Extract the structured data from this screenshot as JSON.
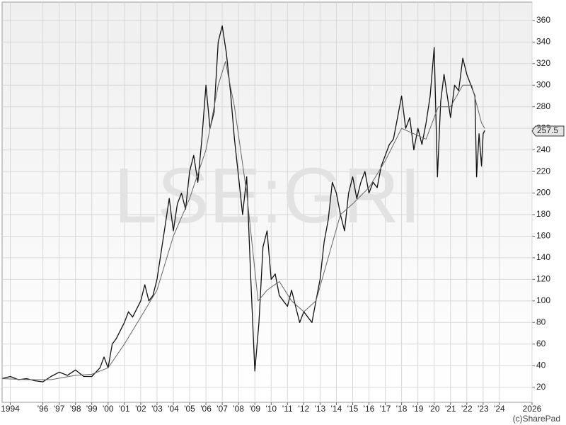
{
  "chart_data": {
    "type": "line",
    "watermark": "LSE:GRI",
    "credit": "(c)SharePad",
    "xlim": [
      1993.5,
      2026
    ],
    "ylim": [
      6,
      377
    ],
    "xticks": [
      1994,
      {
        "value": 1996,
        "label": "'96"
      },
      {
        "value": 1997,
        "label": "'97"
      },
      {
        "value": 1998,
        "label": "'98"
      },
      {
        "value": 1999,
        "label": "'99"
      },
      {
        "value": 2000,
        "label": "'00"
      },
      {
        "value": 2001,
        "label": "'01"
      },
      {
        "value": 2002,
        "label": "'02"
      },
      {
        "value": 2003,
        "label": "'03"
      },
      {
        "value": 2004,
        "label": "'04"
      },
      {
        "value": 2005,
        "label": "'05"
      },
      {
        "value": 2006,
        "label": "'06"
      },
      {
        "value": 2007,
        "label": "'07"
      },
      {
        "value": 2008,
        "label": "'08"
      },
      {
        "value": 2009,
        "label": "'09"
      },
      {
        "value": 2010,
        "label": "'10"
      },
      {
        "value": 2011,
        "label": "'11"
      },
      {
        "value": 2012,
        "label": "'12"
      },
      {
        "value": 2013,
        "label": "'13"
      },
      {
        "value": 2014,
        "label": "'14"
      },
      {
        "value": 2015,
        "label": "'15"
      },
      {
        "value": 2016,
        "label": "'16"
      },
      {
        "value": 2017,
        "label": "'17"
      },
      {
        "value": 2018,
        "label": "'18"
      },
      {
        "value": 2019,
        "label": "'19"
      },
      {
        "value": 2020,
        "label": "'20"
      },
      {
        "value": 2021,
        "label": "'21"
      },
      {
        "value": 2022,
        "label": "'22"
      },
      {
        "value": 2023,
        "label": "'23"
      },
      {
        "value": 2024,
        "label": "'24"
      },
      2026
    ],
    "yticks": [
      20,
      40,
      60,
      80,
      100,
      120,
      140,
      160,
      180,
      200,
      220,
      240,
      260,
      280,
      300,
      320,
      340,
      360
    ],
    "grid": true,
    "current_price": {
      "value": 257.5,
      "label": "257.5"
    },
    "series": [
      {
        "color": "#111111",
        "width": 1.3,
        "x": [
          1993.5,
          1994,
          1994.5,
          1995,
          1995.5,
          1996,
          1996.5,
          1997,
          1997.5,
          1998,
          1998.5,
          1999,
          1999.5,
          1999.75,
          2000,
          2000.25,
          2000.5,
          2001,
          2001.25,
          2001.5,
          2002,
          2002.25,
          2002.5,
          2002.75,
          2003,
          2003.25,
          2003.5,
          2003.75,
          2004,
          2004.25,
          2004.5,
          2004.75,
          2005,
          2005.25,
          2005.5,
          2005.75,
          2006,
          2006.25,
          2006.5,
          2006.75,
          2007,
          2007.25,
          2007.5,
          2007.75,
          2008,
          2008.25,
          2008.5,
          2008.75,
          2009,
          2009.25,
          2009.5,
          2009.75,
          2010,
          2010.25,
          2010.5,
          2010.75,
          2011,
          2011.25,
          2011.5,
          2011.75,
          2012,
          2012.25,
          2012.5,
          2012.75,
          2013,
          2013.25,
          2013.5,
          2013.75,
          2014,
          2014.25,
          2014.5,
          2014.75,
          2015,
          2015.25,
          2015.5,
          2015.75,
          2016,
          2016.25,
          2016.5,
          2016.75,
          2017,
          2017.25,
          2017.5,
          2017.75,
          2018,
          2018.25,
          2018.5,
          2018.75,
          2019,
          2019.25,
          2019.5,
          2019.75,
          2020,
          2020.2,
          2020.4,
          2020.6,
          2020.8,
          2021,
          2021.25,
          2021.5,
          2021.75,
          2022,
          2022.25,
          2022.5,
          2022.6,
          2022.75,
          2022.9,
          2023,
          2023.1
        ],
        "values": [
          28,
          30,
          27,
          28,
          26,
          25,
          30,
          34,
          31,
          36,
          30,
          30,
          38,
          48,
          38,
          60,
          65,
          80,
          90,
          85,
          100,
          115,
          100,
          105,
          120,
          145,
          170,
          195,
          165,
          190,
          200,
          185,
          220,
          235,
          210,
          250,
          300,
          260,
          275,
          340,
          355,
          330,
          295,
          250,
          215,
          180,
          215,
          120,
          35,
          80,
          150,
          165,
          120,
          125,
          105,
          100,
          95,
          110,
          95,
          80,
          90,
          85,
          80,
          100,
          120,
          155,
          175,
          210,
          200,
          180,
          165,
          200,
          215,
          195,
          210,
          220,
          200,
          210,
          205,
          225,
          235,
          245,
          250,
          270,
          290,
          260,
          270,
          240,
          260,
          245,
          265,
          290,
          335,
          215,
          285,
          310,
          290,
          270,
          300,
          295,
          325,
          310,
          300,
          290,
          215,
          255,
          225,
          255,
          258
        ]
      },
      {
        "color": "#666666",
        "width": 1,
        "x": [
          1993.5,
          1995,
          1996.5,
          1998,
          1999,
          2000,
          2001,
          2002,
          2003,
          2004,
          2005,
          2006,
          2006.75,
          2007.2,
          2007.75,
          2008.5,
          2009.2,
          2009.75,
          2010.5,
          2011.25,
          2012,
          2012.75,
          2013.5,
          2014.25,
          2015,
          2016,
          2017,
          2018,
          2018.75,
          2019.5,
          2020.25,
          2021,
          2021.75,
          2022.3,
          2022.9,
          2023.1
        ],
        "values": [
          28,
          27,
          27,
          31,
          32,
          38,
          60,
          85,
          110,
          160,
          195,
          240,
          300,
          322,
          280,
          200,
          100,
          110,
          118,
          100,
          90,
          100,
          140,
          180,
          190,
          205,
          230,
          260,
          255,
          250,
          280,
          280,
          300,
          300,
          265,
          260
        ]
      }
    ]
  }
}
